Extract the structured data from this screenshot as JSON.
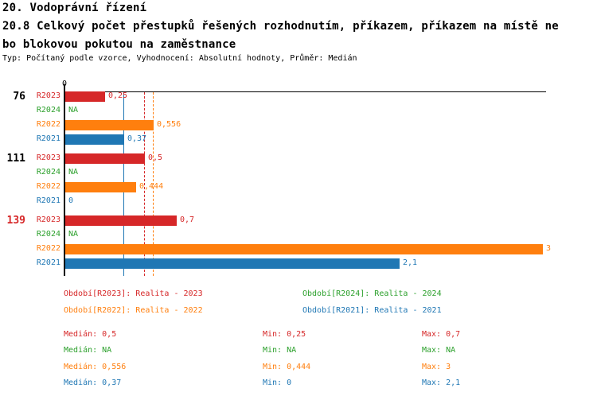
{
  "header": {
    "title": "20. Vodoprávní řízení",
    "subtitle_line1": "20.8 Celkový počet přestupků řešených rozhodnutím, příkazem, příkazem na místě ne",
    "subtitle_line2": "bo blokovou pokutou na zaměstnance",
    "meta": "Typ: Počítaný podle vzorce, Vyhodnocení: Absolutní hodnoty, Průměr: Medián"
  },
  "colors": {
    "R2023": "#d62728",
    "R2024": "#2ca02c",
    "R2022": "#ff7f0e",
    "R2021": "#1f77b4",
    "axis": "#000000",
    "group_label_default": "#000000",
    "group_label_highlight": "#d62728"
  },
  "chart_data": {
    "type": "bar",
    "orientation": "horizontal",
    "title": "20.8 Celkový počet přestupků řešených rozhodnutím, příkazem, příkazem na místě nebo blokovou pokutou na zaměstnance",
    "x_axis": {
      "visible_ticks": [
        "0"
      ],
      "min": 0,
      "max_shown_value": 3
    },
    "series_order": [
      "R2023",
      "R2024",
      "R2022",
      "R2021"
    ],
    "groups": [
      {
        "label": "76",
        "highlight": false,
        "bars": [
          {
            "series": "R2023",
            "value": 0.25,
            "display": "0,25"
          },
          {
            "series": "R2024",
            "value": null,
            "display": "NA"
          },
          {
            "series": "R2022",
            "value": 0.556,
            "display": "0,556"
          },
          {
            "series": "R2021",
            "value": 0.37,
            "display": "0,37"
          }
        ]
      },
      {
        "label": "111",
        "highlight": false,
        "bars": [
          {
            "series": "R2023",
            "value": 0.5,
            "display": "0,5"
          },
          {
            "series": "R2024",
            "value": null,
            "display": "NA"
          },
          {
            "series": "R2022",
            "value": 0.444,
            "display": "0,444"
          },
          {
            "series": "R2021",
            "value": 0,
            "display": "0"
          }
        ]
      },
      {
        "label": "139",
        "highlight": true,
        "bars": [
          {
            "series": "R2023",
            "value": 0.7,
            "display": "0,7"
          },
          {
            "series": "R2024",
            "value": null,
            "display": "NA"
          },
          {
            "series": "R2022",
            "value": 3,
            "display": "3"
          },
          {
            "series": "R2021",
            "value": 2.1,
            "display": "2,1"
          }
        ]
      }
    ],
    "median_lines": [
      {
        "series": "R2021",
        "value": 0.37,
        "style": "solid"
      },
      {
        "series": "R2023",
        "value": 0.5,
        "style": "dashed"
      },
      {
        "series": "R2022",
        "value": 0.556,
        "style": "dashed"
      }
    ]
  },
  "legend": {
    "items": [
      {
        "series": "R2023",
        "label": "Období[R2023]: Realita - 2023"
      },
      {
        "series": "R2024",
        "label": "Období[R2024]: Realita - 2024"
      },
      {
        "series": "R2022",
        "label": "Období[R2022]: Realita - 2022"
      },
      {
        "series": "R2021",
        "label": "Období[R2021]: Realita - 2021"
      }
    ]
  },
  "stats": {
    "rows": [
      {
        "series": "R2023",
        "median_text": "Medián: 0,5",
        "min_text": "Min: 0,25",
        "max_text": "Max: 0,7"
      },
      {
        "series": "R2024",
        "median_text": "Medián: NA",
        "min_text": "Min: NA",
        "max_text": "Max: NA"
      },
      {
        "series": "R2022",
        "median_text": "Medián: 0,556",
        "min_text": "Min: 0,444",
        "max_text": "Max: 3"
      },
      {
        "series": "R2021",
        "median_text": "Medián: 0,37",
        "min_text": "Min: 0",
        "max_text": "Max: 2,1"
      }
    ]
  }
}
